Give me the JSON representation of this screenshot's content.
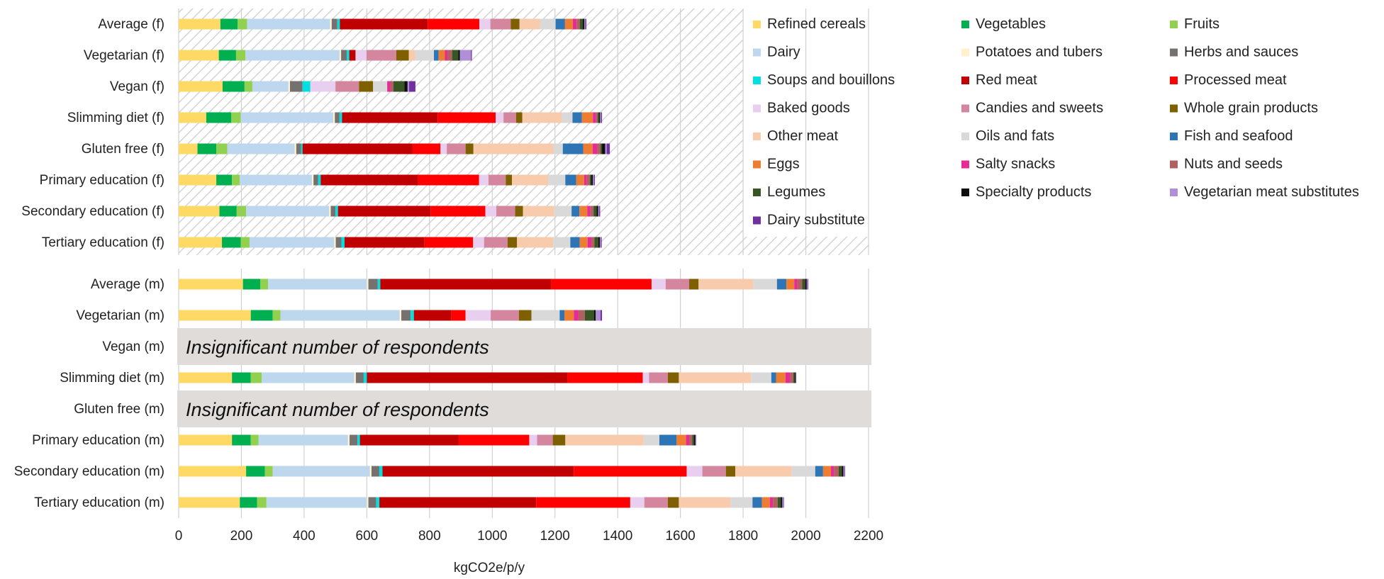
{
  "chart_data": {
    "type": "bar",
    "orientation": "horizontal",
    "stacked": true,
    "xlabel": "kgCO2e/p/y",
    "xlim": [
      0,
      2200
    ],
    "xticks": [
      0,
      200,
      400,
      600,
      800,
      1000,
      1200,
      1400,
      1600,
      1800,
      2000,
      2200
    ],
    "grid": true,
    "legend_position": "top-right",
    "categories": [
      "Refined cereals",
      "Vegetables",
      "Fruits",
      "Dairy",
      "Potatoes and tubers",
      "Herbs and sauces",
      "Soups and bouillons",
      "Red meat",
      "Processed meat",
      "Baked goods",
      "Candies and sweets",
      "Whole grain products",
      "Other meat",
      "Oils and fats",
      "Fish and seafood",
      "Eggs",
      "Salty snacks",
      "Nuts and seeds",
      "Legumes",
      "Specialty products",
      "Vegetarian meat substitutes",
      "Dairy substitute"
    ],
    "colors": [
      "#ffd966",
      "#00b050",
      "#92d050",
      "#bdd7ee",
      "#fff2cc",
      "#767171",
      "#00e0e0",
      "#c00000",
      "#ff0000",
      "#e8cff0",
      "#d5869f",
      "#7f6000",
      "#f8cbad",
      "#d9d9d9",
      "#2e75b6",
      "#ed7d31",
      "#e62b95",
      "#b06060",
      "#375623",
      "#0d0d0d",
      "#b18fd8",
      "#7030a0"
    ],
    "groups": [
      {
        "name": "f",
        "rows": [
          {
            "label": "Average (f)",
            "values": [
              133,
              55,
              30,
              265,
              5,
              18,
              8,
              280,
              165,
              35,
              65,
              28,
              65,
              50,
              30,
              25,
              12,
              10,
              10,
              5,
              3,
              3
            ]
          },
          {
            "label": "Vegetarian (f)",
            "values": [
              128,
              55,
              30,
              300,
              5,
              18,
              8,
              20,
              0,
              35,
              95,
              40,
              20,
              60,
              15,
              20,
              8,
              15,
              20,
              5,
              35,
              3
            ]
          },
          {
            "label": "Vegan (f)",
            "values": [
              140,
              70,
              25,
              115,
              5,
              40,
              25,
              0,
              0,
              80,
              75,
              45,
              0,
              45,
              0,
              0,
              10,
              10,
              35,
              10,
              5,
              20
            ]
          },
          {
            "label": "Slimming diet (f)",
            "values": [
              88,
              80,
              30,
              295,
              5,
              15,
              8,
              305,
              185,
              25,
              40,
              20,
              125,
              35,
              30,
              35,
              10,
              5,
              5,
              3,
              3,
              3
            ]
          },
          {
            "label": "Gluten free (f)",
            "values": [
              60,
              60,
              35,
              215,
              5,
              15,
              5,
              350,
              90,
              20,
              60,
              25,
              255,
              30,
              65,
              30,
              15,
              10,
              5,
              10,
              5,
              10
            ]
          },
          {
            "label": "Primary education (f)",
            "values": [
              120,
              50,
              25,
              230,
              5,
              15,
              8,
              310,
              195,
              30,
              55,
              20,
              115,
              55,
              35,
              25,
              8,
              10,
              5,
              5,
              3,
              3
            ]
          },
          {
            "label": "Secondary education (f)",
            "values": [
              130,
              55,
              30,
              265,
              5,
              15,
              8,
              295,
              175,
              35,
              60,
              25,
              100,
              55,
              25,
              25,
              10,
              10,
              10,
              5,
              3,
              3
            ]
          },
          {
            "label": "Tertiary education (f)",
            "values": [
              138,
              60,
              28,
              270,
              5,
              18,
              10,
              255,
              155,
              35,
              75,
              30,
              115,
              55,
              30,
              25,
              12,
              10,
              12,
              5,
              3,
              3
            ]
          }
        ]
      },
      {
        "name": "m",
        "rows": [
          {
            "label": "Average (m)",
            "values": [
              205,
              55,
              25,
              315,
              5,
              30,
              8,
              545,
              320,
              45,
              75,
              30,
              175,
              75,
              30,
              25,
              10,
              15,
              10,
              5,
              3,
              2
            ]
          },
          {
            "label": "Vegetarian (m)",
            "values": [
              230,
              70,
              25,
              380,
              5,
              30,
              10,
              120,
              45,
              80,
              90,
              40,
              0,
              90,
              15,
              30,
              15,
              20,
              30,
              5,
              15,
              5
            ]
          },
          {
            "label": "Vegan (m)",
            "insignificant": true,
            "note": "Insignificant number of respondents",
            "values": []
          },
          {
            "label": "Slimming diet (m)",
            "values": [
              170,
              60,
              35,
              295,
              5,
              25,
              10,
              640,
              240,
              20,
              60,
              35,
              230,
              65,
              15,
              30,
              15,
              10,
              5,
              3,
              2,
              0
            ]
          },
          {
            "label": "Gluten free (m)",
            "insignificant": true,
            "note": "Insignificant number of respondents",
            "values": []
          },
          {
            "label": "Primary education (m)",
            "values": [
              170,
              60,
              25,
              285,
              5,
              25,
              8,
              315,
              225,
              25,
              50,
              40,
              250,
              50,
              55,
              30,
              10,
              10,
              5,
              5,
              3,
              0
            ]
          },
          {
            "label": "Secondary education (m)",
            "values": [
              215,
              60,
              25,
              310,
              5,
              25,
              10,
              610,
              360,
              50,
              75,
              30,
              180,
              75,
              25,
              25,
              10,
              15,
              10,
              5,
              3,
              2
            ]
          },
          {
            "label": "Tertiary education (m)",
            "values": [
              195,
              55,
              30,
              320,
              5,
              25,
              10,
              500,
              300,
              45,
              75,
              35,
              165,
              70,
              30,
              25,
              10,
              15,
              10,
              5,
              3,
              2
            ]
          }
        ]
      }
    ]
  }
}
